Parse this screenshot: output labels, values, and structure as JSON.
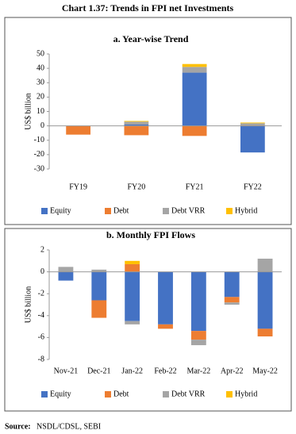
{
  "title": "Chart 1.37: Trends in FPI net Investments",
  "source_label": "Source:",
  "source_text": "NSDL/CDSL, SEBI",
  "chart_data": [
    {
      "type": "bar",
      "stacked": true,
      "title": "a. Year-wise Trend",
      "ylabel": "US$ billion",
      "categories": [
        "FY19",
        "FY20",
        "FY21",
        "FY22"
      ],
      "series": [
        {
          "name": "Equity",
          "color": "#4472c4",
          "values": [
            0,
            0.9,
            37,
            -18.5
          ]
        },
        {
          "name": "Debt",
          "color": "#ed7d31",
          "values": [
            -6.1,
            -6.5,
            -7,
            0.3
          ]
        },
        {
          "name": "Debt VRR",
          "color": "#a5a5a5",
          "values": [
            0,
            2,
            4,
            1.5
          ]
        },
        {
          "name": "Hybrid",
          "color": "#ffc000",
          "values": [
            0,
            0.5,
            2,
            0.5
          ]
        }
      ],
      "ylim": [
        -30,
        50
      ],
      "yticks": [
        -30,
        -20,
        -10,
        0,
        10,
        20,
        30,
        40,
        50
      ]
    },
    {
      "type": "bar",
      "stacked": true,
      "title": "b. Monthly FPI Flows",
      "ylabel": "US$ billion",
      "categories": [
        "Nov-21",
        "Dec-21",
        "Jan-22",
        "Feb-22",
        "Mar-22",
        "Apr-22",
        "May-22"
      ],
      "series": [
        {
          "name": "Equity",
          "color": "#4472c4",
          "values": [
            -0.8,
            -2.6,
            -4.5,
            -4.8,
            -5.4,
            -2.3,
            -5.2
          ]
        },
        {
          "name": "Debt",
          "color": "#ed7d31",
          "values": [
            0,
            -1.6,
            0.7,
            -0.4,
            -0.8,
            -0.5,
            -0.7
          ]
        },
        {
          "name": "Debt VRR",
          "color": "#a5a5a5",
          "values": [
            0.45,
            0.2,
            -0.3,
            0,
            -0.5,
            -0.2,
            1.2
          ]
        },
        {
          "name": "Hybrid",
          "color": "#ffc000",
          "values": [
            0,
            0,
            0.3,
            0,
            0,
            0,
            0
          ]
        }
      ],
      "ylim": [
        -8,
        2
      ],
      "yticks": [
        -8,
        -6,
        -4,
        -2,
        0,
        2
      ]
    }
  ]
}
